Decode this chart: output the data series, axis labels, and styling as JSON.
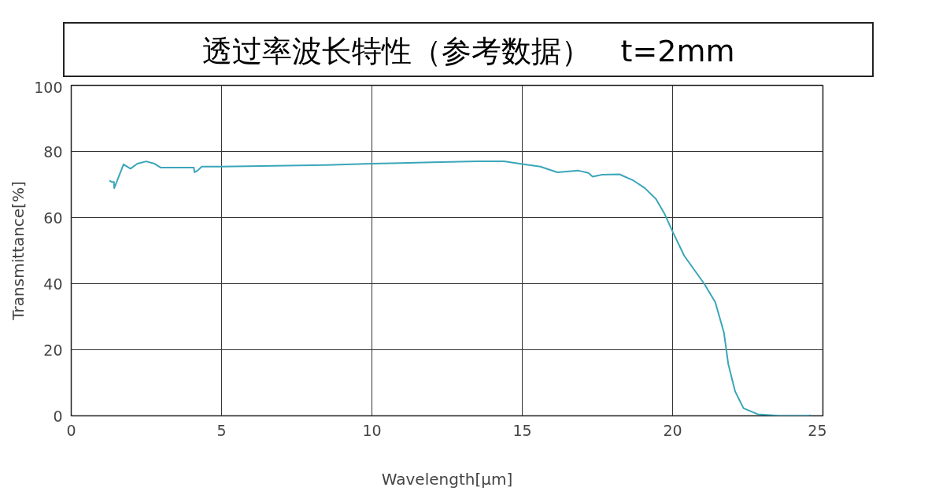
{
  "chart_data": {
    "type": "line",
    "title": "透过率波长特性（参考数据）　t=2mm",
    "xlabel": "Wavelength[μm]",
    "ylabel": "Transmittance[%]",
    "xlim": [
      0,
      25
    ],
    "xticks": [
      0,
      5,
      10,
      15,
      20,
      25
    ],
    "ylim": [
      0,
      100
    ],
    "yticks": [
      0,
      20,
      40,
      60,
      80,
      100
    ],
    "grid": true,
    "series": [
      {
        "color": "#3aa6b9",
        "x": [
          1.27,
          1.34,
          1.42,
          1.43,
          1.74,
          1.97,
          2.2,
          2.49,
          2.77,
          2.98,
          4.08,
          4.1,
          4.2,
          4.34,
          5.0,
          8.45,
          10.0,
          12.0,
          13.5,
          14.39,
          15.0,
          15.6,
          16.17,
          16.87,
          17.2,
          17.34,
          17.67,
          18.23,
          18.7,
          19.08,
          19.45,
          19.74,
          20.02,
          20.39,
          21.05,
          21.42,
          21.71,
          21.85,
          22.08,
          22.36,
          22.83,
          23.58,
          24.5,
          24.6
        ],
        "values": [
          71.2,
          70.8,
          70.8,
          68.9,
          76.1,
          74.8,
          76.3,
          77.0,
          76.3,
          75.1,
          75.1,
          73.7,
          74.2,
          75.4,
          75.4,
          75.9,
          76.3,
          76.7,
          77.0,
          77.0,
          76.2,
          75.4,
          73.7,
          74.2,
          73.5,
          72.4,
          73.0,
          73.1,
          71.2,
          68.9,
          65.6,
          61.0,
          55.4,
          48.4,
          40.0,
          34.4,
          25.1,
          15.8,
          7.4,
          2.3,
          0.5,
          0,
          0,
          0.2
        ]
      }
    ]
  }
}
